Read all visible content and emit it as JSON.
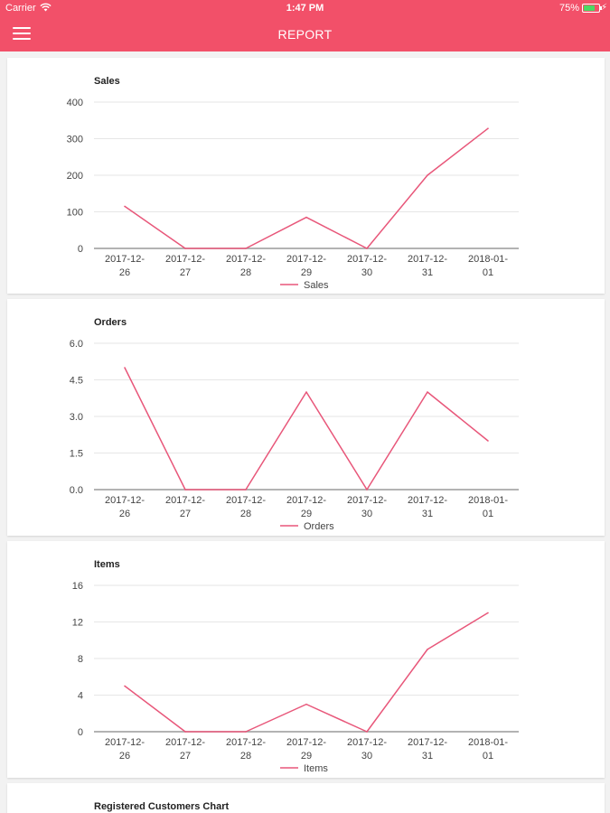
{
  "status": {
    "carrier": "Carrier",
    "time": "1:47 PM",
    "battery": "75%"
  },
  "nav": {
    "title": "REPORT"
  },
  "colors": {
    "accent": "#f25069",
    "line": "#e8577a",
    "grid": "#e6e6e6",
    "axis": "#9a9a9a"
  },
  "charts": [
    {
      "title": "Sales",
      "legend": "Sales",
      "chart_data": {
        "type": "line",
        "categories": [
          "2017-12-26",
          "2017-12-27",
          "2017-12-28",
          "2017-12-29",
          "2017-12-30",
          "2017-12-31",
          "2018-01-01"
        ],
        "tick_labels": [
          [
            "2017-12-",
            "26"
          ],
          [
            "2017-12-",
            "27"
          ],
          [
            "2017-12-",
            "28"
          ],
          [
            "2017-12-",
            "29"
          ],
          [
            "2017-12-",
            "30"
          ],
          [
            "2017-12-",
            "31"
          ],
          [
            "2018-01-",
            "01"
          ]
        ],
        "series": [
          {
            "name": "Sales",
            "values": [
              115,
              0,
              0,
              85,
              0,
              200,
              328
            ]
          }
        ],
        "ylim": [
          0,
          400
        ],
        "yticks": [
          "0",
          "100",
          "200",
          "300",
          "400"
        ],
        "grid": true,
        "legend_position": "bottom-center"
      }
    },
    {
      "title": "Orders",
      "legend": "Orders",
      "chart_data": {
        "type": "line",
        "categories": [
          "2017-12-26",
          "2017-12-27",
          "2017-12-28",
          "2017-12-29",
          "2017-12-30",
          "2017-12-31",
          "2018-01-01"
        ],
        "tick_labels": [
          [
            "2017-12-",
            "26"
          ],
          [
            "2017-12-",
            "27"
          ],
          [
            "2017-12-",
            "28"
          ],
          [
            "2017-12-",
            "29"
          ],
          [
            "2017-12-",
            "30"
          ],
          [
            "2017-12-",
            "31"
          ],
          [
            "2018-01-",
            "01"
          ]
        ],
        "series": [
          {
            "name": "Orders",
            "values": [
              5,
              0,
              0,
              4,
              0,
              4,
              2
            ]
          }
        ],
        "ylim": [
          0,
          6
        ],
        "yticks": [
          "0.0",
          "1.5",
          "3.0",
          "4.5",
          "6.0"
        ],
        "grid": true,
        "legend_position": "bottom-center"
      }
    },
    {
      "title": "Items",
      "legend": "Items",
      "chart_data": {
        "type": "line",
        "categories": [
          "2017-12-26",
          "2017-12-27",
          "2017-12-28",
          "2017-12-29",
          "2017-12-30",
          "2017-12-31",
          "2018-01-01"
        ],
        "tick_labels": [
          [
            "2017-12-",
            "26"
          ],
          [
            "2017-12-",
            "27"
          ],
          [
            "2017-12-",
            "28"
          ],
          [
            "2017-12-",
            "29"
          ],
          [
            "2017-12-",
            "30"
          ],
          [
            "2017-12-",
            "31"
          ],
          [
            "2018-01-",
            "01"
          ]
        ],
        "series": [
          {
            "name": "Items",
            "values": [
              5,
              0,
              0,
              3,
              0,
              9,
              13
            ]
          }
        ],
        "ylim": [
          0,
          16
        ],
        "yticks": [
          "0",
          "4",
          "8",
          "12",
          "16"
        ],
        "grid": true,
        "legend_position": "bottom-center"
      }
    },
    {
      "title": "Registered Customers Chart"
    }
  ]
}
